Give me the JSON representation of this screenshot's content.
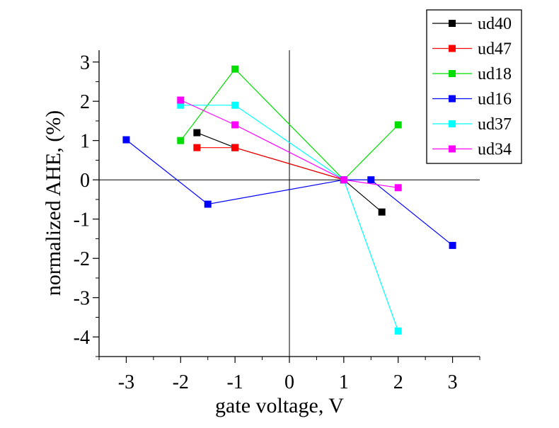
{
  "chart_data": {
    "type": "line",
    "title": "",
    "xlabel": "gate voltage, V",
    "ylabel": "normalized AHE, (%)",
    "xlim": [
      -3.5,
      3.5
    ],
    "ylim": [
      -4.5,
      3.3
    ],
    "x_ticks": [
      -3,
      -2,
      -1,
      0,
      1,
      2,
      3
    ],
    "x_tick_labels": [
      "-3",
      "-2",
      "-1",
      "0",
      "1",
      "2",
      "3"
    ],
    "y_ticks": [
      3,
      2,
      1,
      0,
      -1,
      -2,
      -3,
      -4
    ],
    "y_tick_labels": [
      "3",
      "2",
      "1",
      "0",
      "-1",
      "-2",
      "-3",
      "-4"
    ],
    "zero_lines": true,
    "grid": false,
    "legend_position": "top-right",
    "series": [
      {
        "name": "ud40",
        "color": "#000000",
        "x": [
          -1.7,
          -1,
          1,
          1.7
        ],
        "y": [
          1.2,
          0.82,
          0,
          -0.82
        ]
      },
      {
        "name": "ud47",
        "color": "#ff0000",
        "x": [
          -1.7,
          -1,
          1
        ],
        "y": [
          0.82,
          0.82,
          0
        ]
      },
      {
        "name": "ud18",
        "color": "#00dd00",
        "x": [
          -2,
          -1,
          1,
          2
        ],
        "y": [
          1.0,
          2.82,
          0,
          1.4
        ]
      },
      {
        "name": "ud16",
        "color": "#0000ff",
        "x": [
          -3,
          -1.5,
          1,
          1.5,
          3
        ],
        "y": [
          1.02,
          -0.62,
          0,
          0,
          -1.67
        ]
      },
      {
        "name": "ud37",
        "color": "#00ffff",
        "x": [
          -2,
          -1,
          1,
          2
        ],
        "y": [
          1.9,
          1.9,
          0,
          -3.85
        ]
      },
      {
        "name": "ud34",
        "color": "#ff00ff",
        "x": [
          -2,
          -1,
          1,
          2
        ],
        "y": [
          2.03,
          1.4,
          0,
          -0.2
        ]
      }
    ]
  }
}
